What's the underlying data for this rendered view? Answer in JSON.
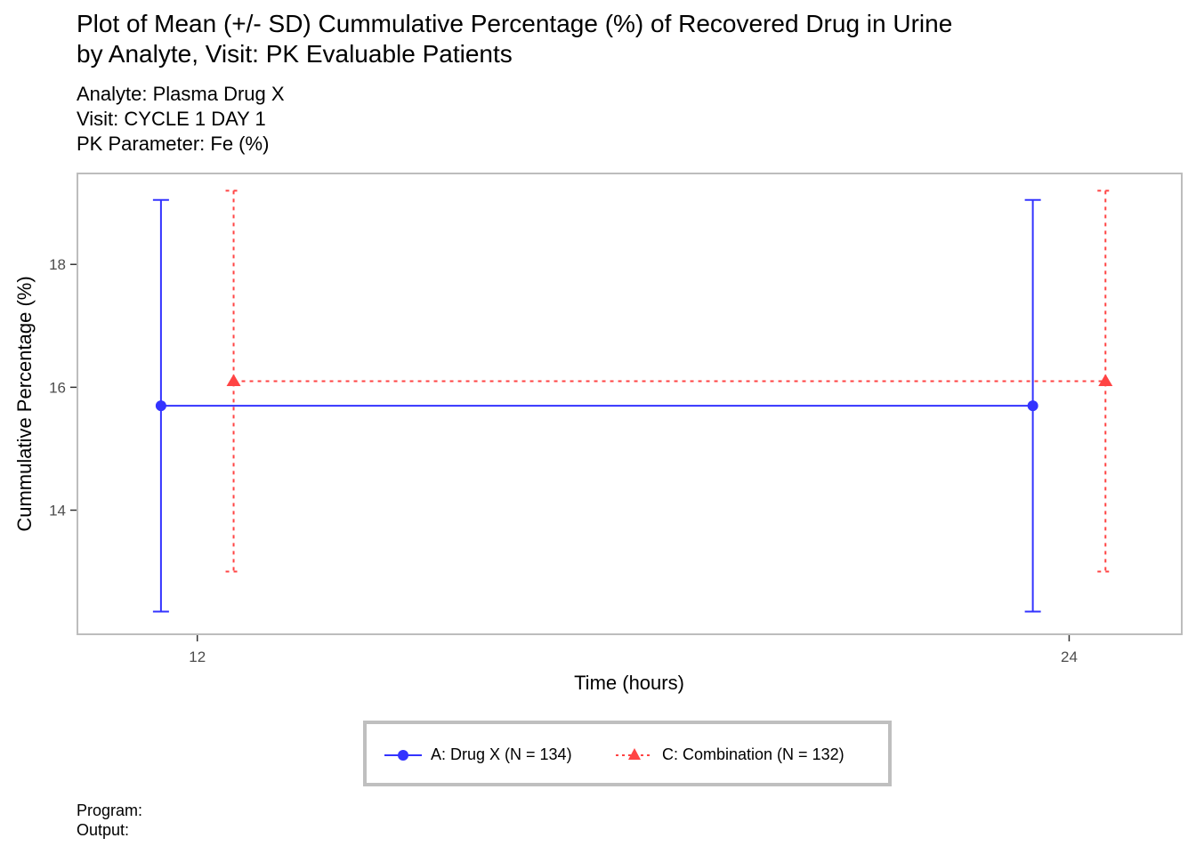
{
  "title": {
    "line1": "Plot of Mean (+/- SD) Cummulative Percentage (%) of Recovered Drug in Urine",
    "line2": "by Analyte, Visit: PK Evaluable Patients"
  },
  "subtitle": {
    "line1": "Analyte: Plasma Drug X",
    "line2": "Visit: CYCLE 1 DAY 1",
    "line3": "PK Parameter: Fe (%)"
  },
  "caption": {
    "program": "Program:",
    "output": "Output:"
  },
  "chart_data": {
    "type": "line",
    "xlabel": "Time (hours)",
    "ylabel": "Cummulative Percentage (%)",
    "x_ticks": [
      12,
      24
    ],
    "y_ticks": [
      14,
      16,
      18
    ],
    "xlim": [
      10.35,
      25.55
    ],
    "ylim": [
      11.98,
      19.48
    ],
    "grid": false,
    "legend_position": "bottom",
    "series": [
      {
        "name": "A: Drug X (N = 134)",
        "color": "#3333ff",
        "linestyle": "solid",
        "marker": "circle",
        "x_offset": -0.5,
        "points": [
          {
            "x": 12,
            "mean": 15.7,
            "lower": 12.35,
            "upper": 19.05
          },
          {
            "x": 24,
            "mean": 15.7,
            "lower": 12.35,
            "upper": 19.05
          }
        ]
      },
      {
        "name": "C: Combination (N = 132)",
        "color": "#ff4444",
        "linestyle": "dotted",
        "marker": "triangle",
        "x_offset": 0.5,
        "points": [
          {
            "x": 12,
            "mean": 16.1,
            "lower": 13.0,
            "upper": 19.2
          },
          {
            "x": 24,
            "mean": 16.1,
            "lower": 13.0,
            "upper": 19.2
          }
        ]
      }
    ]
  }
}
